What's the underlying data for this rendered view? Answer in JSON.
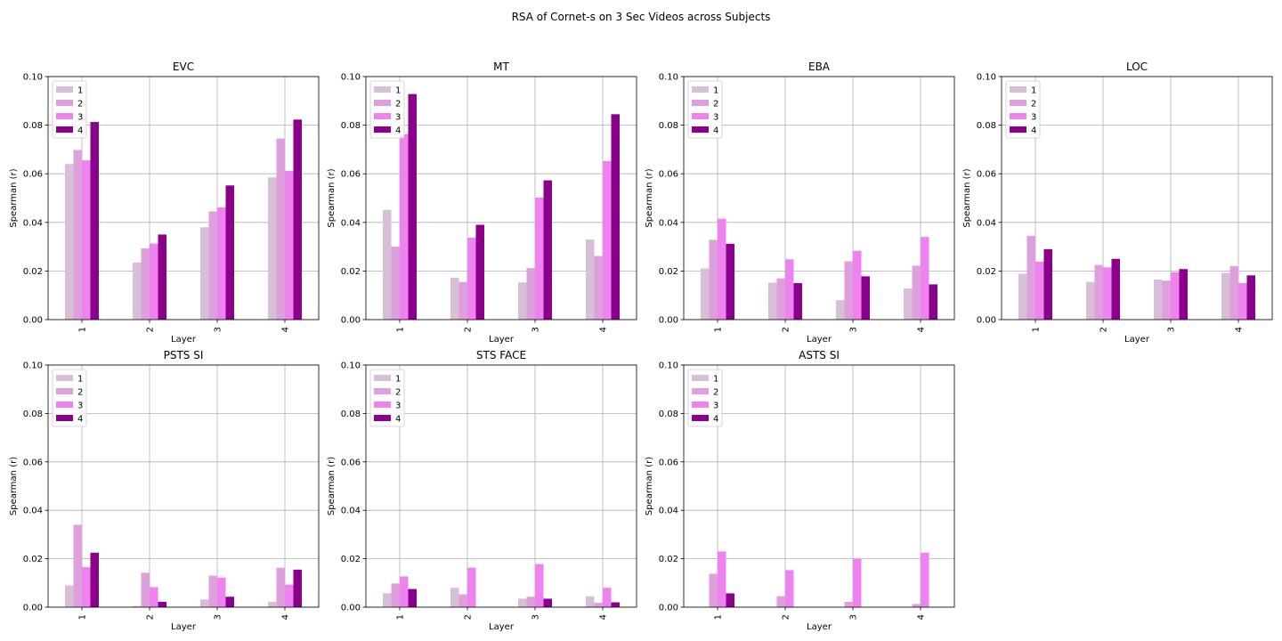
{
  "figure": {
    "title": "RSA of Cornet-s on 3 Sec Videos across Subjects"
  },
  "colors": {
    "1": "#d8bfd8",
    "2": "#dda0dd",
    "3": "#ee82ee",
    "4": "#8b008b",
    "grid": "#b0b0b0"
  },
  "chart_data": [
    {
      "type": "bar",
      "title": "EVC",
      "xlabel": "Layer",
      "ylabel": "Spearman (r)",
      "categories": [
        "1",
        "2",
        "3",
        "4"
      ],
      "ylim": [
        0,
        0.1
      ],
      "yticks": [
        "0.00",
        "0.02",
        "0.04",
        "0.06",
        "0.08",
        "0.10"
      ],
      "grid": true,
      "legend": "upper left",
      "series": [
        {
          "name": "1",
          "values": [
            0.064,
            0.0235,
            0.038,
            0.0585
          ]
        },
        {
          "name": "2",
          "values": [
            0.0698,
            0.0293,
            0.0445,
            0.0745
          ]
        },
        {
          "name": "3",
          "values": [
            0.0655,
            0.0313,
            0.0462,
            0.0612
          ]
        },
        {
          "name": "4",
          "values": [
            0.0813,
            0.035,
            0.0552,
            0.0823
          ]
        }
      ]
    },
    {
      "type": "bar",
      "title": "MT",
      "xlabel": "Layer",
      "ylabel": "Spearman (r)",
      "categories": [
        "1",
        "2",
        "3",
        "4"
      ],
      "ylim": [
        0,
        0.1
      ],
      "yticks": [
        "0.00",
        "0.02",
        "0.04",
        "0.06",
        "0.08",
        "0.10"
      ],
      "grid": true,
      "legend": "upper left",
      "series": [
        {
          "name": "1",
          "values": [
            0.0452,
            0.0172,
            0.0153,
            0.033
          ]
        },
        {
          "name": "2",
          "values": [
            0.03,
            0.0155,
            0.0212,
            0.0262
          ]
        },
        {
          "name": "3",
          "values": [
            0.0763,
            0.0337,
            0.0502,
            0.0652
          ]
        },
        {
          "name": "4",
          "values": [
            0.0928,
            0.039,
            0.0573,
            0.0845
          ]
        }
      ]
    },
    {
      "type": "bar",
      "title": "EBA",
      "xlabel": "Layer",
      "ylabel": "Spearman (r)",
      "categories": [
        "1",
        "2",
        "3",
        "4"
      ],
      "ylim": [
        0,
        0.1
      ],
      "yticks": [
        "0.00",
        "0.02",
        "0.04",
        "0.06",
        "0.08",
        "0.10"
      ],
      "grid": true,
      "legend": "upper left",
      "series": [
        {
          "name": "1",
          "values": [
            0.021,
            0.0152,
            0.008,
            0.0128
          ]
        },
        {
          "name": "2",
          "values": [
            0.0328,
            0.017,
            0.024,
            0.0222
          ]
        },
        {
          "name": "3",
          "values": [
            0.0415,
            0.0248,
            0.0283,
            0.034
          ]
        },
        {
          "name": "4",
          "values": [
            0.0312,
            0.015,
            0.0178,
            0.0145
          ]
        }
      ]
    },
    {
      "type": "bar",
      "title": "LOC",
      "xlabel": "Layer",
      "ylabel": "Spearman (r)",
      "categories": [
        "1",
        "2",
        "3",
        "4"
      ],
      "ylim": [
        0,
        0.1
      ],
      "yticks": [
        "0.00",
        "0.02",
        "0.04",
        "0.06",
        "0.08",
        "0.10"
      ],
      "grid": true,
      "legend": "upper left",
      "series": [
        {
          "name": "1",
          "values": [
            0.0188,
            0.0155,
            0.0165,
            0.0192
          ]
        },
        {
          "name": "2",
          "values": [
            0.0345,
            0.0225,
            0.016,
            0.022
          ]
        },
        {
          "name": "3",
          "values": [
            0.0238,
            0.0215,
            0.0195,
            0.015
          ]
        },
        {
          "name": "4",
          "values": [
            0.029,
            0.025,
            0.0208,
            0.0182
          ]
        }
      ]
    },
    {
      "type": "bar",
      "title": "PSTS SI",
      "xlabel": "Layer",
      "ylabel": "Spearman (r)",
      "categories": [
        "1",
        "2",
        "3",
        "4"
      ],
      "ylim": [
        0,
        0.1
      ],
      "yticks": [
        "0.00",
        "0.02",
        "0.04",
        "0.06",
        "0.08",
        "0.10"
      ],
      "grid": true,
      "legend": "upper left",
      "series": [
        {
          "name": "1",
          "values": [
            0.009,
            0.0005,
            0.0032,
            0.0022
          ]
        },
        {
          "name": "2",
          "values": [
            0.034,
            0.0142,
            0.013,
            0.0163
          ]
        },
        {
          "name": "3",
          "values": [
            0.0165,
            0.0083,
            0.0122,
            0.0093
          ]
        },
        {
          "name": "4",
          "values": [
            0.0225,
            0.0022,
            0.0043,
            0.0155
          ]
        }
      ]
    },
    {
      "type": "bar",
      "title": "STS FACE",
      "xlabel": "Layer",
      "ylabel": "Spearman (r)",
      "categories": [
        "1",
        "2",
        "3",
        "4"
      ],
      "ylim": [
        0,
        0.1
      ],
      "yticks": [
        "0.00",
        "0.02",
        "0.04",
        "0.06",
        "0.08",
        "0.10"
      ],
      "grid": true,
      "legend": "upper left",
      "series": [
        {
          "name": "1",
          "values": [
            0.0058,
            0.008,
            0.0035,
            0.0045
          ]
        },
        {
          "name": "2",
          "values": [
            0.0098,
            0.0053,
            0.0043,
            0.0018
          ]
        },
        {
          "name": "3",
          "values": [
            0.0127,
            0.0163,
            0.0178,
            0.008
          ]
        },
        {
          "name": "4",
          "values": [
            0.0075,
            0.0,
            0.0035,
            0.002
          ]
        }
      ]
    },
    {
      "type": "bar",
      "title": "ASTS SI",
      "xlabel": "Layer",
      "ylabel": "Spearman (r)",
      "categories": [
        "1",
        "2",
        "3",
        "4"
      ],
      "ylim": [
        0,
        0.1
      ],
      "yticks": [
        "0.00",
        "0.02",
        "0.04",
        "0.06",
        "0.08",
        "0.10"
      ],
      "grid": true,
      "legend": "upper left",
      "series": [
        {
          "name": "1",
          "values": [
            0.0,
            0.0,
            0.0,
            0.0
          ]
        },
        {
          "name": "2",
          "values": [
            0.0138,
            0.0045,
            0.0022,
            0.0013
          ]
        },
        {
          "name": "3",
          "values": [
            0.023,
            0.0153,
            0.02,
            0.0225
          ]
        },
        {
          "name": "4",
          "values": [
            0.0057,
            0.0,
            0.0,
            0.0
          ]
        }
      ]
    }
  ]
}
